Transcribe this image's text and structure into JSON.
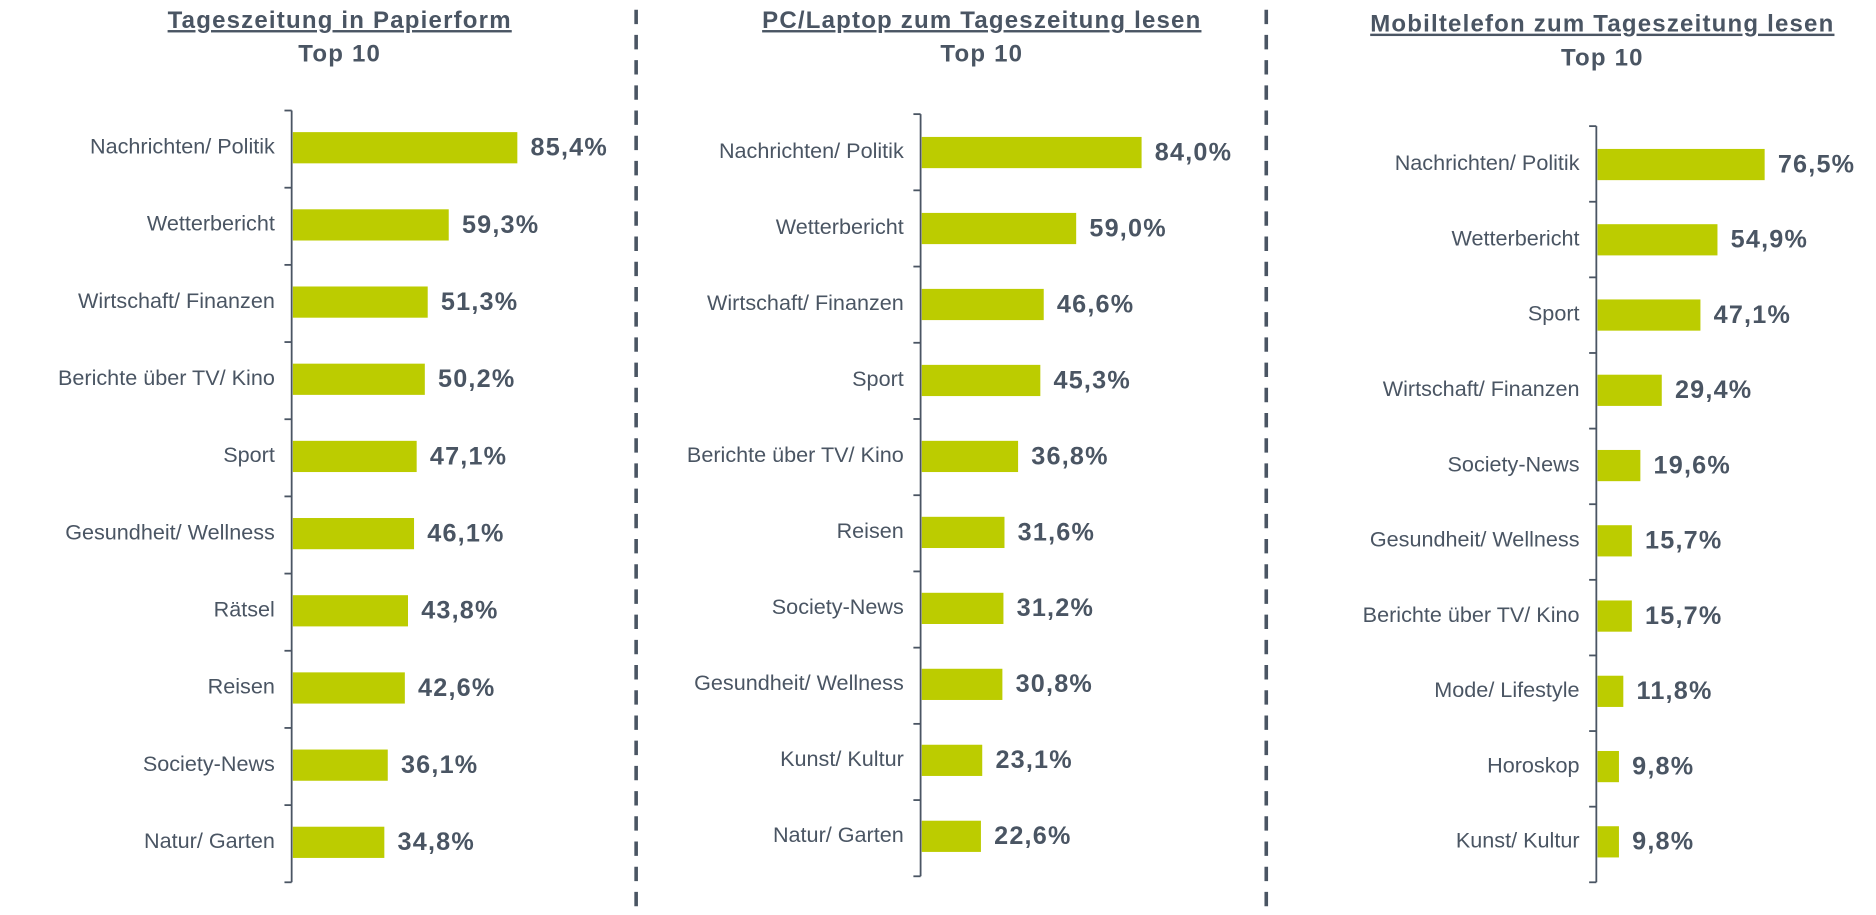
{
  "chart_data": [
    {
      "type": "bar",
      "title": "Tageszeitung in Papierform",
      "subtitle": "Top 10",
      "color": "#bccc00",
      "categories": [
        "Nachrichten/ Politik",
        "Wetterbericht",
        "Wirtschaft/ Finanzen",
        "Berichte über TV/ Kino",
        "Sport",
        "Gesundheit/ Wellness",
        "Rätsel",
        "Reisen",
        "Society-News",
        "Natur/ Garten"
      ],
      "values": [
        85.4,
        59.3,
        51.3,
        50.2,
        47.1,
        46.1,
        43.8,
        42.6,
        36.1,
        34.8
      ],
      "value_labels": [
        "85,4%",
        "59,3%",
        "51,3%",
        "50,2%",
        "47,1%",
        "46,1%",
        "43,8%",
        "42,6%",
        "36,1%",
        "34,8%"
      ]
    },
    {
      "type": "bar",
      "title": "PC/Laptop zum Tageszeitung lesen",
      "subtitle": "Top 10",
      "color": "#bccc00",
      "categories": [
        "Nachrichten/ Politik",
        "Wetterbericht",
        "Wirtschaft/ Finanzen",
        "Sport",
        "Berichte über TV/ Kino",
        "Reisen",
        "Society-News",
        "Gesundheit/ Wellness",
        "Kunst/ Kultur",
        "Natur/ Garten"
      ],
      "values": [
        84.0,
        59.0,
        46.6,
        45.3,
        36.8,
        31.6,
        31.2,
        30.8,
        23.1,
        22.6
      ],
      "value_labels": [
        "84,0%",
        "59,0%",
        "46,6%",
        "45,3%",
        "36,8%",
        "31,6%",
        "31,2%",
        "30,8%",
        "23,1%",
        "22,6%"
      ]
    },
    {
      "type": "bar",
      "title": "Mobiltelefon zum Tageszeitung lesen",
      "subtitle": "Top 10",
      "color": "#bccc00",
      "categories": [
        "Nachrichten/ Politik",
        "Wetterbericht",
        "Sport",
        "Wirtschaft/ Finanzen",
        "Society-News",
        "Gesundheit/ Wellness",
        "Berichte über TV/ Kino",
        "Mode/ Lifestyle",
        "Horoskop",
        "Kunst/ Kultur"
      ],
      "values": [
        76.5,
        54.9,
        47.1,
        29.4,
        19.6,
        15.7,
        15.7,
        11.8,
        9.8,
        9.8
      ],
      "value_labels": [
        "76,5%",
        "54,9%",
        "47,1%",
        "29,4%",
        "19,6%",
        "15,7%",
        "15,7%",
        "11,8%",
        "9,8%",
        "9,8%"
      ]
    }
  ]
}
